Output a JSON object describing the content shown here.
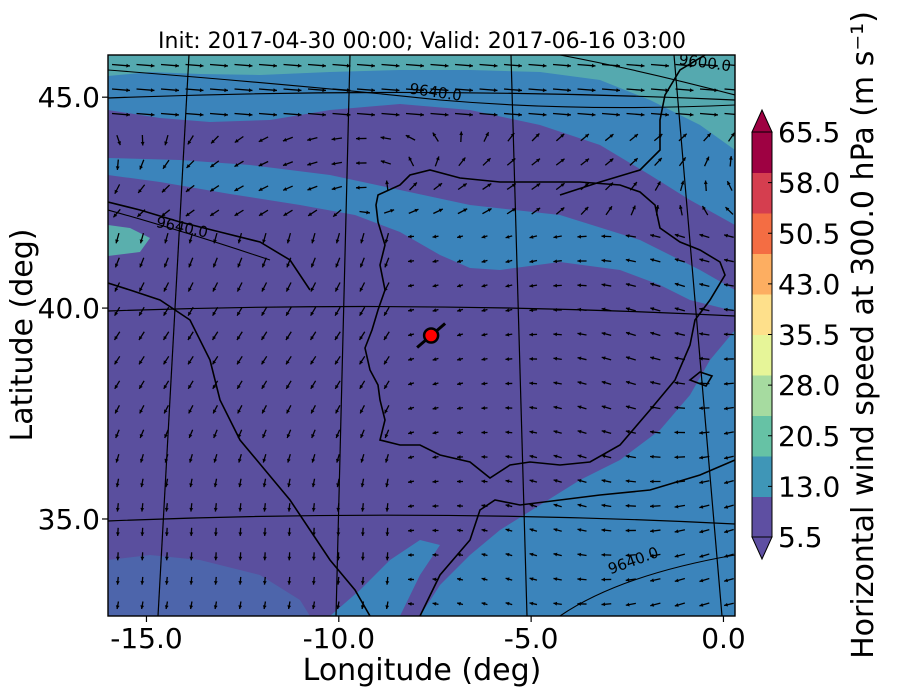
{
  "title": "Init: 2017-04-30 00:00; Valid: 2017-06-16 03:00",
  "map": {
    "xlabel": "Longitude (deg)",
    "ylabel": "Latitude (deg)",
    "lon_ticks": [
      "-15.0",
      "-10.0",
      "-5.0",
      "0.0"
    ],
    "lat_ticks": [
      "45.0",
      "40.0",
      "35.0"
    ],
    "lon_range": [
      -16.0,
      0.3
    ],
    "lat_range": [
      32.7,
      46.0
    ],
    "contour_unit_level": "9640.0",
    "contour_labels": [
      {
        "text": "9640.0",
        "lon": -7.5,
        "lat": 45.0
      },
      {
        "text": "9600.0",
        "lon": -0.5,
        "lat": 45.7
      },
      {
        "text": "9640.0",
        "lon": -14.1,
        "lat": 41.8
      },
      {
        "text": "9640.0",
        "lon": -2.3,
        "lat": 33.9
      }
    ],
    "marker": {
      "lon": -7.6,
      "lat": 39.35,
      "color": "#ff0000"
    }
  },
  "colorbar": {
    "label": "Horizontal wind speed at 300.0 hPa (m s⁻¹)",
    "ticks": [
      "65.5",
      "58.0",
      "50.5",
      "43.0",
      "35.5",
      "28.0",
      "20.5",
      "13.0",
      "5.5"
    ],
    "colors": [
      "#5e4fa2",
      "#3f96b7",
      "#66c2a5",
      "#a6dba0",
      "#e6f598",
      "#fee08b",
      "#fdae61",
      "#f46d43",
      "#d53e4f",
      "#9e0142"
    ]
  },
  "colors": {
    "background_field": "#5a4f9e",
    "medium_wind": "#3b84bb",
    "stronger_wind": "#5aafad"
  }
}
